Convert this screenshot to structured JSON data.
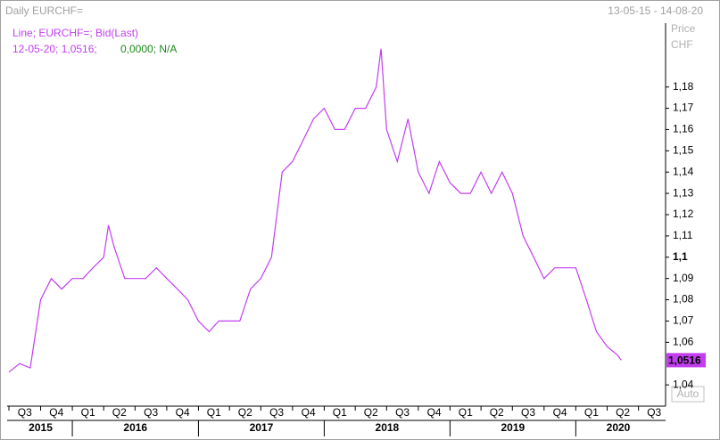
{
  "chart_data": {
    "type": "line",
    "title": "Daily EURCHF=",
    "date_range": "13-05-15 - 14-08-20",
    "legend_line": "Line; EURCHF=; Bid(Last)",
    "readout_main": "12-05-20; 1,0516;",
    "readout_extra": "0,0000; N/A",
    "y_label": "Price",
    "y_unit": "CHF",
    "auto_button": "Auto",
    "series": [
      {
        "name": "EURCHF=",
        "color": "#c23ef0",
        "x": [
          "01-07-15",
          "01-08-15",
          "01-09-15",
          "01-10-15",
          "01-11-15",
          "01-12-15",
          "01-01-16",
          "01-02-16",
          "01-03-16",
          "01-04-16",
          "15-04-16",
          "01-05-16",
          "01-06-16",
          "01-07-16",
          "01-08-16",
          "01-09-16",
          "01-10-16",
          "01-11-16",
          "01-12-16",
          "01-01-17",
          "01-02-17",
          "01-03-17",
          "01-04-17",
          "01-05-17",
          "01-06-17",
          "01-07-17",
          "01-08-17",
          "01-09-17",
          "01-10-17",
          "01-11-17",
          "01-12-17",
          "01-01-18",
          "01-02-18",
          "01-03-18",
          "01-04-18",
          "01-05-18",
          "01-06-18",
          "15-06-18",
          "01-07-18",
          "01-08-18",
          "01-09-18",
          "01-10-18",
          "01-11-18",
          "01-12-18",
          "01-01-19",
          "01-02-19",
          "01-03-19",
          "01-04-19",
          "01-05-19",
          "01-06-19",
          "01-07-19",
          "01-08-19",
          "01-09-19",
          "01-10-19",
          "01-11-19",
          "01-12-19",
          "01-01-20",
          "01-02-20",
          "01-03-20",
          "01-04-20",
          "01-05-20",
          "12-05-20"
        ],
        "values": [
          1.046,
          1.05,
          1.048,
          1.08,
          1.09,
          1.085,
          1.09,
          1.09,
          1.095,
          1.1,
          1.115,
          1.105,
          1.09,
          1.09,
          1.09,
          1.095,
          1.09,
          1.085,
          1.08,
          1.07,
          1.065,
          1.07,
          1.07,
          1.07,
          1.085,
          1.09,
          1.1,
          1.14,
          1.145,
          1.155,
          1.165,
          1.17,
          1.16,
          1.16,
          1.17,
          1.17,
          1.18,
          1.198,
          1.16,
          1.145,
          1.165,
          1.14,
          1.13,
          1.145,
          1.135,
          1.13,
          1.13,
          1.14,
          1.13,
          1.14,
          1.13,
          1.11,
          1.1,
          1.09,
          1.095,
          1.095,
          1.095,
          1.08,
          1.065,
          1.058,
          1.054,
          1.0516
        ]
      }
    ],
    "last_value": {
      "value": 1.0516,
      "label": "1,0516"
    },
    "xlim": [
      "01-07-15",
      "15-09-20"
    ],
    "xticks": [
      {
        "value": "01-07-15",
        "label": "Q3"
      },
      {
        "value": "01-10-15",
        "label": "Q4"
      },
      {
        "value": "01-01-16",
        "label": "Q1"
      },
      {
        "value": "01-04-16",
        "label": "Q2"
      },
      {
        "value": "01-07-16",
        "label": "Q3"
      },
      {
        "value": "01-10-16",
        "label": "Q4"
      },
      {
        "value": "01-01-17",
        "label": "Q1"
      },
      {
        "value": "01-04-17",
        "label": "Q2"
      },
      {
        "value": "01-07-17",
        "label": "Q3"
      },
      {
        "value": "01-10-17",
        "label": "Q4"
      },
      {
        "value": "01-01-18",
        "label": "Q1"
      },
      {
        "value": "01-04-18",
        "label": "Q2"
      },
      {
        "value": "01-07-18",
        "label": "Q3"
      },
      {
        "value": "01-10-18",
        "label": "Q4"
      },
      {
        "value": "01-01-19",
        "label": "Q1"
      },
      {
        "value": "01-04-19",
        "label": "Q2"
      },
      {
        "value": "01-07-19",
        "label": "Q3"
      },
      {
        "value": "01-10-19",
        "label": "Q4"
      },
      {
        "value": "01-01-20",
        "label": "Q1"
      },
      {
        "value": "01-04-20",
        "label": "Q2"
      },
      {
        "value": "01-07-20",
        "label": "Q3"
      }
    ],
    "year_ticks": [
      {
        "value": "01-07-15",
        "label": "2015"
      },
      {
        "value": "01-01-16",
        "label": "2016"
      },
      {
        "value": "01-01-17",
        "label": "2017"
      },
      {
        "value": "01-01-18",
        "label": "2018"
      },
      {
        "value": "01-01-19",
        "label": "2019"
      },
      {
        "value": "01-01-20",
        "label": "2020"
      }
    ],
    "ylim": [
      1.03,
      1.21
    ],
    "yticks": [
      {
        "value": 1.04,
        "label": "1,04"
      },
      {
        "value": 1.06,
        "label": "1,06"
      },
      {
        "value": 1.07,
        "label": "1,07"
      },
      {
        "value": 1.08,
        "label": "1,08"
      },
      {
        "value": 1.09,
        "label": "1,09"
      },
      {
        "value": 1.1,
        "label": "1,1",
        "bold": true
      },
      {
        "value": 1.11,
        "label": "1,11"
      },
      {
        "value": 1.12,
        "label": "1,12"
      },
      {
        "value": 1.13,
        "label": "1,13"
      },
      {
        "value": 1.14,
        "label": "1,14"
      },
      {
        "value": 1.15,
        "label": "1,15"
      },
      {
        "value": 1.16,
        "label": "1,16"
      },
      {
        "value": 1.17,
        "label": "1,17"
      },
      {
        "value": 1.18,
        "label": "1,18"
      }
    ]
  }
}
